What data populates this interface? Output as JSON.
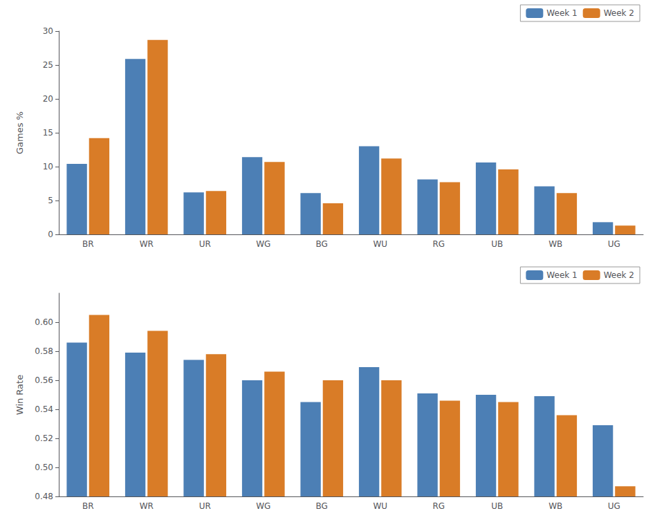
{
  "chart_data": [
    {
      "type": "bar",
      "ylabel": "Games %",
      "categories": [
        "BR",
        "WR",
        "UR",
        "WG",
        "BG",
        "WU",
        "RG",
        "UB",
        "WB",
        "UG"
      ],
      "series": [
        {
          "name": "Week 1",
          "color": "#4c7fb5",
          "values": [
            10.4,
            25.9,
            6.2,
            11.4,
            6.1,
            13.0,
            8.1,
            10.6,
            7.1,
            1.8
          ]
        },
        {
          "name": "Week 2",
          "color": "#d97c27",
          "values": [
            14.2,
            28.7,
            6.4,
            10.7,
            4.6,
            11.2,
            7.7,
            9.6,
            6.1,
            1.3
          ]
        }
      ],
      "ylim": [
        0,
        30
      ],
      "yticks": [
        0,
        5,
        10,
        15,
        20,
        25,
        30
      ],
      "legend": "upper right",
      "grid": false
    },
    {
      "type": "bar",
      "ylabel": "Win Rate",
      "categories": [
        "BR",
        "WR",
        "UR",
        "WG",
        "BG",
        "WU",
        "RG",
        "UB",
        "WB",
        "UG"
      ],
      "series": [
        {
          "name": "Week 1",
          "color": "#4c7fb5",
          "values": [
            0.586,
            0.579,
            0.574,
            0.56,
            0.545,
            0.569,
            0.551,
            0.55,
            0.549,
            0.529
          ]
        },
        {
          "name": "Week 2",
          "color": "#d97c27",
          "values": [
            0.605,
            0.594,
            0.578,
            0.566,
            0.56,
            0.56,
            0.546,
            0.545,
            0.536,
            0.487
          ]
        }
      ],
      "ylim": [
        0.48,
        0.62
      ],
      "yticks": [
        0.48,
        {
          "value": 0.5,
          "label": "0.50"
        },
        0.52,
        0.54,
        0.56,
        0.58,
        {
          "value": 0.6,
          "label": "0.60"
        }
      ],
      "legend": "upper right",
      "grid": false
    }
  ]
}
